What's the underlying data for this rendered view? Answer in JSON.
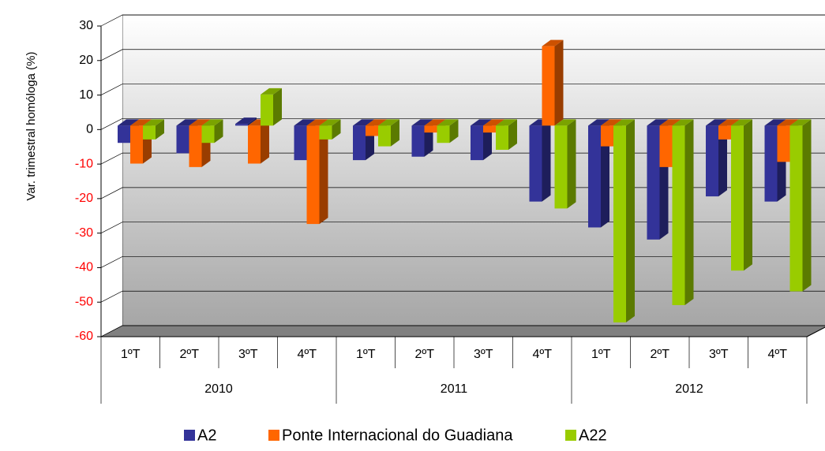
{
  "chart_data": {
    "type": "bar3d",
    "y_axis_label": "Var. trimestral homóloga (%)",
    "categories": [
      "1ºT",
      "2ºT",
      "3ºT",
      "4ºT",
      "1ºT",
      "2ºT",
      "3ºT",
      "4ºT",
      "1ºT",
      "2ºT",
      "3ºT",
      "4ºT"
    ],
    "groups": [
      "2010",
      "2011",
      "2012"
    ],
    "series": [
      {
        "name": "A2",
        "color": "#333399",
        "values": [
          -5,
          -8,
          0.5,
          -10,
          -10,
          -9,
          -10,
          -22,
          -29.5,
          -33,
          -20.5,
          -22
        ]
      },
      {
        "name": "Ponte Internacional do Guadiana",
        "color": "#ff6600",
        "values": [
          -11,
          -12,
          -11,
          -28.5,
          -3,
          -2,
          -2,
          23,
          -6,
          -12,
          -4,
          -10.5
        ]
      },
      {
        "name": "A22",
        "color": "#99cc00",
        "values": [
          -4,
          -5,
          9,
          -4,
          -6,
          -5,
          -7,
          -24,
          -57,
          -52,
          -42,
          -48
        ]
      }
    ],
    "ylim": [
      -60,
      30
    ],
    "yticks": [
      -60,
      -50,
      -40,
      -30,
      -20,
      -10,
      0,
      10,
      20,
      30
    ],
    "tick_label_colors": {
      "negative": "#ff0000",
      "positive": "#000000"
    },
    "grid": true,
    "legend": "bottom"
  }
}
